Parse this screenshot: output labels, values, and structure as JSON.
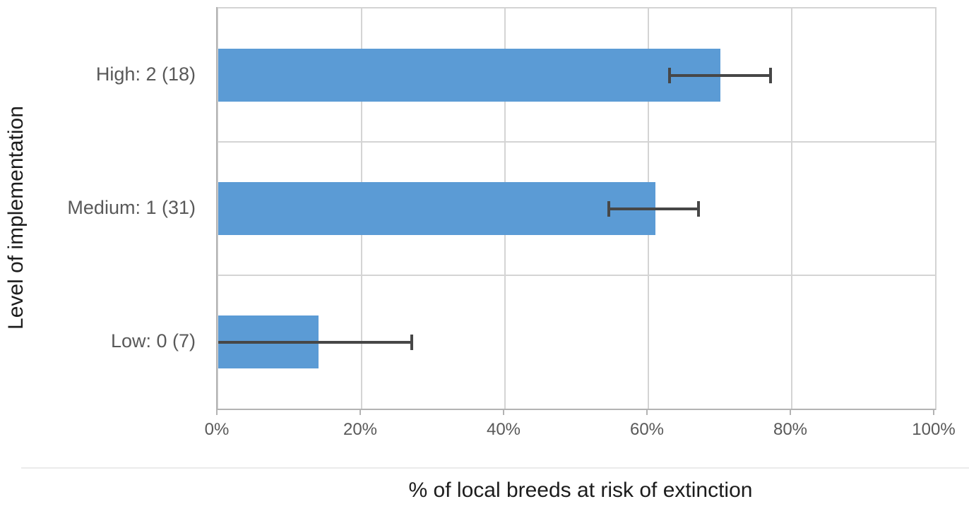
{
  "chart_data": {
    "type": "bar",
    "orientation": "horizontal",
    "title": "",
    "xlabel": "% of local breeds at risk of extinction",
    "ylabel": "Level of implementation",
    "categories": [
      "High: 2 (18)",
      "Medium: 1 (31)",
      "Low: 0 (7)"
    ],
    "values": [
      70,
      61,
      14
    ],
    "error_low": [
      63,
      54.5,
      0
    ],
    "error_high": [
      77,
      67,
      27
    ],
    "xlim": [
      0,
      100
    ],
    "x_tick_labels": [
      "0%",
      "20%",
      "40%",
      "60%",
      "80%",
      "100%"
    ],
    "x_tick_values": [
      0,
      20,
      40,
      60,
      80,
      100
    ],
    "grid": true,
    "legend": "none",
    "colors": {
      "bar_fill": "#5B9BD5",
      "error_bar": "#474747",
      "gridline": "#d4d4d4",
      "axis_line": "#b3b3b3",
      "tick_text": "#595959",
      "category_text": "#595959",
      "title_text": "#1c1c1c"
    }
  }
}
